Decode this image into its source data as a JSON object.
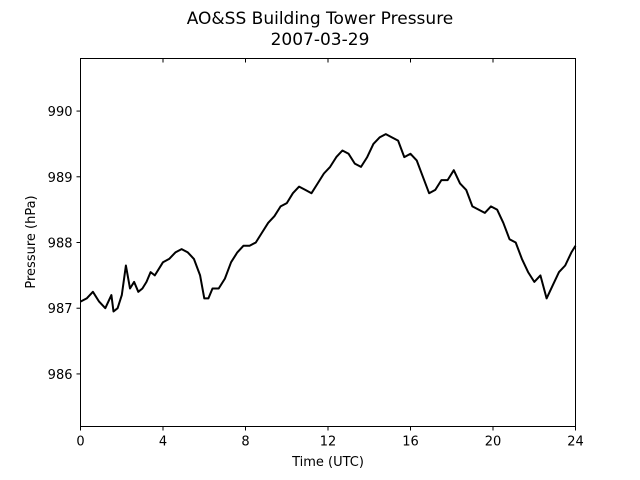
{
  "chart_data": {
    "type": "line",
    "title": "AO&SS Building Tower Pressure",
    "subtitle": "2007-03-29",
    "xlabel": "Time (UTC)",
    "ylabel": "Pressure (hPa)",
    "xlim": [
      0,
      24
    ],
    "ylim": [
      985.2,
      990.8
    ],
    "xticks": [
      0,
      4,
      8,
      12,
      16,
      20,
      24
    ],
    "xtick_labels": [
      "0",
      "4",
      "8",
      "12",
      "16",
      "20",
      "24"
    ],
    "yticks": [
      986,
      987,
      988,
      989,
      990
    ],
    "ytick_labels": [
      "986",
      "987",
      "988",
      "989",
      "990"
    ],
    "grid": false,
    "legend": "none",
    "line_color": "#000000",
    "series": [
      {
        "x": [
          0.0,
          0.3,
          0.6,
          0.9,
          1.2,
          1.5,
          1.6,
          1.8,
          2.0,
          2.2,
          2.4,
          2.6,
          2.8,
          3.0,
          3.2,
          3.4,
          3.6,
          3.8,
          4.0,
          4.3,
          4.6,
          4.9,
          5.2,
          5.5,
          5.8,
          6.0,
          6.2,
          6.4,
          6.7,
          7.0,
          7.3,
          7.6,
          7.9,
          8.2,
          8.5,
          8.8,
          9.1,
          9.4,
          9.7,
          10.0,
          10.3,
          10.6,
          10.9,
          11.2,
          11.5,
          11.8,
          12.1,
          12.4,
          12.7,
          13.0,
          13.3,
          13.6,
          13.9,
          14.2,
          14.5,
          14.8,
          15.1,
          15.4,
          15.7,
          16.0,
          16.3,
          16.6,
          16.9,
          17.2,
          17.5,
          17.8,
          18.1,
          18.4,
          18.7,
          19.0,
          19.3,
          19.6,
          19.9,
          20.2,
          20.5,
          20.8,
          21.1,
          21.4,
          21.7,
          22.0,
          22.3,
          22.6,
          22.9,
          23.2,
          23.5,
          23.8,
          24.0
        ],
        "y": [
          987.1,
          987.15,
          987.25,
          987.1,
          987.0,
          987.2,
          986.95,
          987.0,
          987.2,
          987.65,
          987.3,
          987.4,
          987.25,
          987.3,
          987.4,
          987.55,
          987.5,
          987.6,
          987.7,
          987.75,
          987.85,
          987.9,
          987.85,
          987.75,
          987.5,
          987.15,
          987.15,
          987.3,
          987.3,
          987.45,
          987.7,
          987.85,
          987.95,
          987.95,
          988.0,
          988.15,
          988.3,
          988.4,
          988.55,
          988.6,
          988.75,
          988.85,
          988.8,
          988.75,
          988.9,
          989.05,
          989.15,
          989.3,
          989.4,
          989.35,
          989.2,
          989.15,
          989.3,
          989.5,
          989.6,
          989.65,
          989.6,
          989.55,
          989.3,
          989.35,
          989.25,
          989.0,
          988.75,
          988.8,
          988.95,
          988.95,
          989.1,
          988.9,
          988.8,
          988.55,
          988.5,
          988.45,
          988.55,
          988.5,
          988.3,
          988.05,
          988.0,
          987.75,
          987.55,
          987.4,
          987.5,
          987.15,
          987.35,
          987.55,
          987.65,
          987.85,
          987.95
        ]
      }
    ]
  }
}
